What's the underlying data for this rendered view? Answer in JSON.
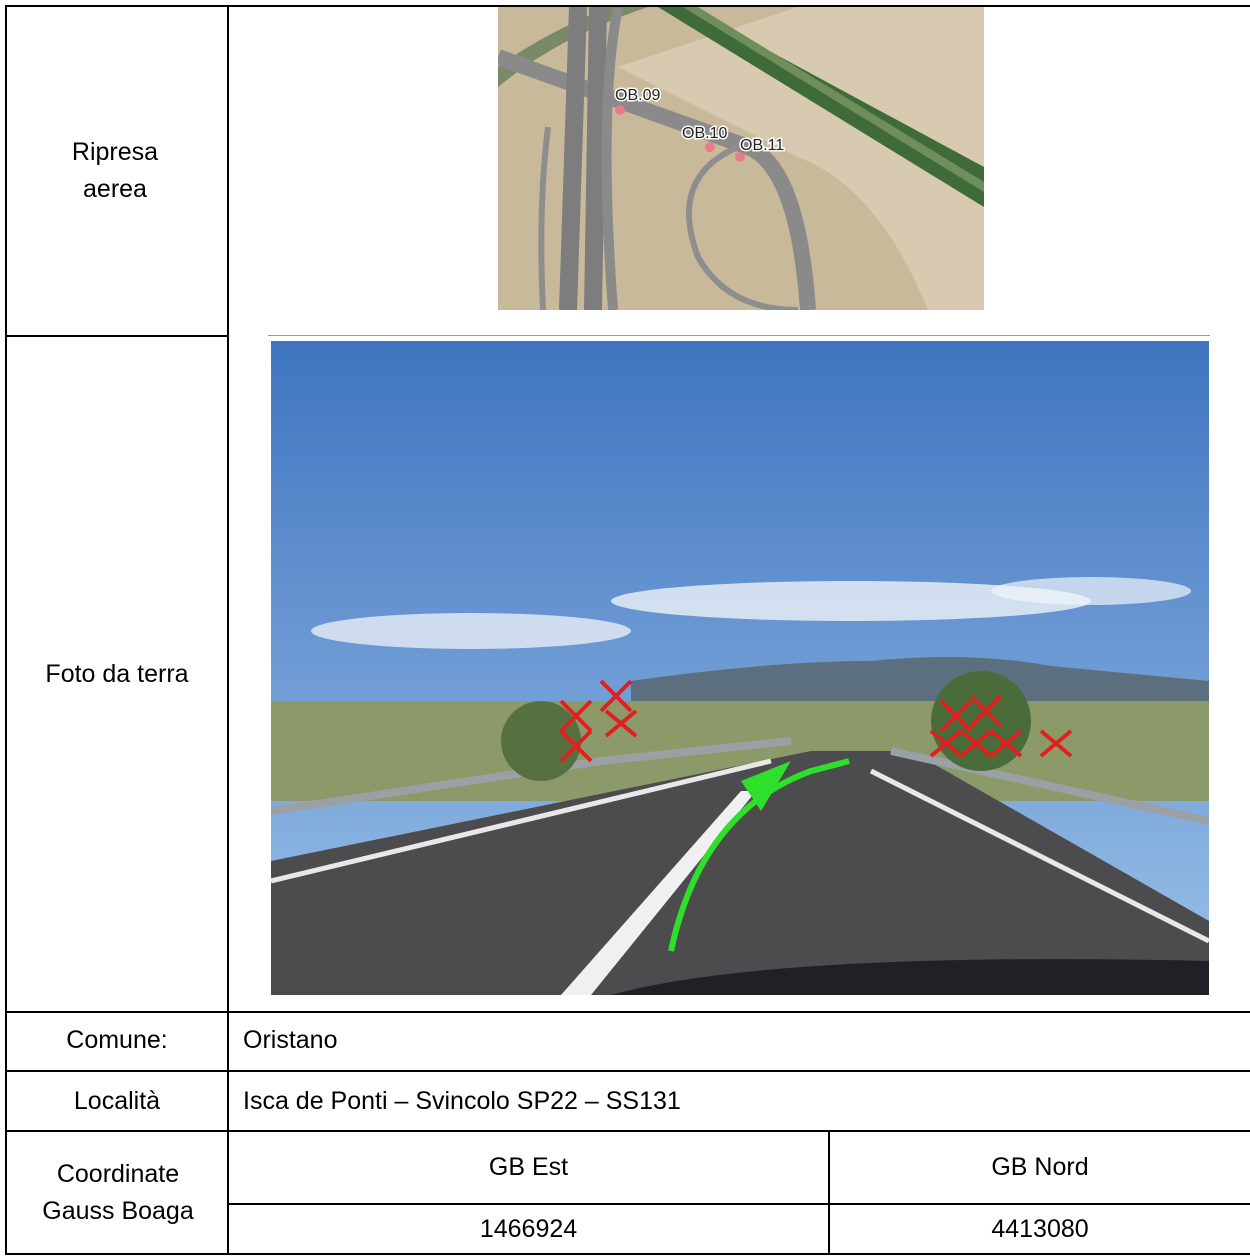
{
  "aerial": {
    "label": "Ripresa aerea",
    "map_labels": [
      "OB.09",
      "OB.10",
      "OB.11"
    ]
  },
  "ground": {
    "label": "Foto da terra"
  },
  "comune": {
    "label": "Comune:",
    "value": "Oristano"
  },
  "localita": {
    "label": "Località",
    "value": "Isca de Ponti – Svincolo SP22 – SS131"
  },
  "coordinates": {
    "label": "Coordinate Gauss Boaga",
    "headers": [
      "GB Est",
      "GB Nord"
    ],
    "values": [
      1466924,
      4413080
    ]
  }
}
